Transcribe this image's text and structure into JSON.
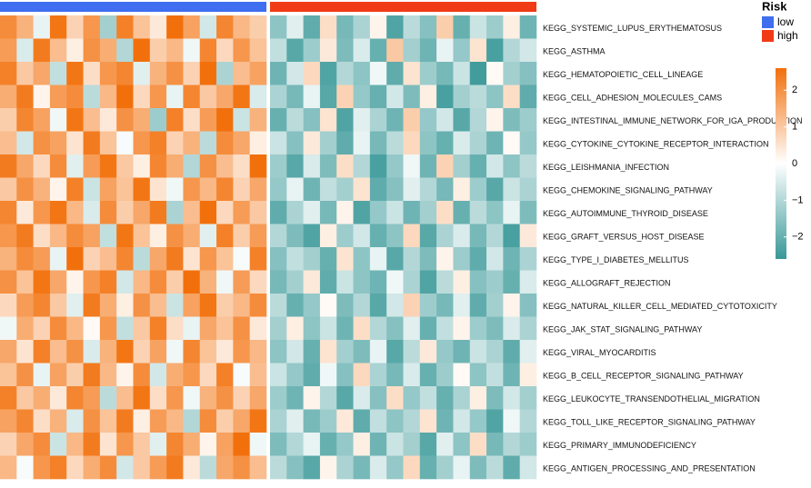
{
  "chart_data": {
    "type": "heatmap",
    "annotation_title": "Risk",
    "column_groups": [
      {
        "name": "low",
        "color": "#3f6ff0",
        "count": 16
      },
      {
        "name": "high",
        "color": "#f03b16",
        "count": 16
      }
    ],
    "colors": {
      "low": "#3a9898",
      "mid": "#ffffff",
      "high": "#f2700c"
    },
    "zlim": [
      -2.6,
      2.6
    ],
    "zticks": [
      {
        "value": -2,
        "label": "−2"
      },
      {
        "value": -1,
        "label": "−1"
      },
      0,
      1,
      2
    ],
    "series": [
      {
        "name": "KEGG_SYSTEMIC_LUPUS_ERYTHEMATOSUS",
        "values": [
          2.1,
          1.4,
          -0.3,
          2.5,
          0.8,
          1.9,
          -1.2,
          2.3,
          1.1,
          0.4,
          2.6,
          1.7,
          -0.6,
          2.2,
          1.3,
          0.9,
          -1.5,
          -0.4,
          -2.1,
          0.6,
          -1.8,
          -1.1,
          0.2,
          -2.3,
          -0.9,
          -1.6,
          0.9,
          -2.0,
          -0.7,
          -1.3,
          0.3,
          -1.9
        ]
      },
      {
        "name": "KEGG_ASTHMA",
        "values": [
          1.8,
          -0.5,
          2.4,
          1.2,
          0.3,
          2.0,
          1.5,
          -1.0,
          2.6,
          0.9,
          1.3,
          -0.2,
          2.2,
          0.7,
          1.9,
          1.1,
          -0.8,
          -2.2,
          -1.3,
          0.4,
          -1.7,
          -0.5,
          -2.0,
          1.0,
          -1.2,
          -1.9,
          -0.3,
          -1.4,
          0.5,
          -2.4,
          -1.0,
          -0.6
        ]
      },
      {
        "name": "KEGG_HEMATOPOIETIC_CELL_LINEAGE",
        "values": [
          2.3,
          1.0,
          1.6,
          -0.8,
          2.5,
          0.6,
          1.9,
          2.2,
          -0.4,
          1.4,
          2.0,
          0.8,
          2.6,
          -1.1,
          1.2,
          1.7,
          -1.9,
          -0.6,
          0.7,
          -2.3,
          -1.0,
          -1.5,
          -0.2,
          -2.1,
          0.5,
          -1.3,
          -1.8,
          -0.7,
          -2.5,
          0.1,
          -1.2,
          -1.6
        ]
      },
      {
        "name": "KEGG_CELL_ADHESION_MOLECULES_CAMS",
        "values": [
          1.5,
          2.4,
          0.2,
          1.8,
          2.1,
          -0.9,
          1.3,
          2.6,
          0.7,
          1.9,
          -0.3,
          2.2,
          1.0,
          1.6,
          2.5,
          -0.5,
          -1.1,
          -1.8,
          -0.3,
          -2.2,
          0.8,
          -1.4,
          -2.0,
          -0.6,
          -1.7,
          0.3,
          -2.4,
          -1.2,
          -0.9,
          -1.5,
          0.6,
          -2.1
        ]
      },
      {
        "name": "KEGG_INTESTINAL_IMMUNE_NETWORK_FOR_IGA_PRODUCTION",
        "values": [
          0.9,
          2.2,
          1.7,
          -0.2,
          2.5,
          1.2,
          0.4,
          2.0,
          1.5,
          -1.3,
          2.3,
          0.6,
          1.8,
          2.6,
          -0.7,
          1.4,
          -2.0,
          -0.9,
          -1.6,
          0.5,
          -2.3,
          -0.4,
          -1.1,
          -1.9,
          0.9,
          -1.4,
          -0.6,
          -2.2,
          -1.0,
          0.2,
          -1.7,
          -1.3
        ]
      },
      {
        "name": "KEGG_CYTOKINE_CYTOKINE_RECEPTOR_INTERACTION",
        "values": [
          1.2,
          -0.6,
          2.0,
          1.7,
          0.5,
          2.4,
          1.1,
          -0.1,
          1.9,
          2.3,
          0.8,
          1.4,
          -0.9,
          2.1,
          1.6,
          0.3,
          -0.7,
          -1.6,
          0.4,
          -1.2,
          -2.1,
          -0.3,
          -1.8,
          -0.9,
          0.7,
          -1.5,
          -2.0,
          -0.5,
          -1.1,
          -1.9,
          0.1,
          -1.4
        ]
      },
      {
        "name": "KEGG_LEISHMANIA_INFECTION",
        "values": [
          2.4,
          1.6,
          0.7,
          2.1,
          -0.4,
          1.8,
          2.5,
          1.0,
          0.3,
          2.2,
          1.5,
          -1.0,
          2.0,
          1.2,
          0.6,
          2.6,
          -1.3,
          -2.2,
          -0.5,
          -1.7,
          0.6,
          -1.0,
          -2.4,
          -1.4,
          -0.2,
          -1.9,
          0.8,
          -1.2,
          -2.0,
          -0.6,
          -1.5,
          -0.9
        ]
      },
      {
        "name": "KEGG_CHEMOKINE_SIGNALING_PATHWAY",
        "values": [
          1.0,
          2.0,
          1.4,
          0.2,
          2.3,
          -0.7,
          1.7,
          1.1,
          2.5,
          0.5,
          -0.2,
          1.9,
          1.3,
          2.2,
          0.8,
          1.6,
          -1.4,
          -0.3,
          -1.9,
          -0.8,
          -1.2,
          0.5,
          -2.1,
          -1.6,
          -0.4,
          -1.0,
          -1.8,
          0.3,
          -1.3,
          -2.2,
          -0.7,
          -1.1
        ]
      },
      {
        "name": "KEGG_AUTOIMMUNE_THYROID_DISEASE",
        "values": [
          2.2,
          0.4,
          1.9,
          2.5,
          1.3,
          -0.5,
          2.1,
          0.9,
          1.6,
          2.4,
          -1.1,
          1.2,
          2.6,
          0.7,
          1.8,
          1.0,
          -2.1,
          -1.1,
          -0.4,
          -1.8,
          0.2,
          -2.3,
          -1.4,
          -0.7,
          -1.9,
          -1.2,
          0.6,
          -2.0,
          -0.9,
          -1.5,
          -0.3,
          -1.7
        ]
      },
      {
        "name": "KEGG_GRAFT_VERSUS_HOST_DISEASE",
        "values": [
          1.9,
          2.4,
          0.6,
          1.3,
          2.1,
          1.7,
          -0.8,
          2.5,
          1.1,
          0.3,
          2.0,
          1.5,
          -0.4,
          2.3,
          0.9,
          1.8,
          -1.0,
          -1.7,
          -2.3,
          0.3,
          -1.3,
          -0.6,
          -2.0,
          -1.5,
          0.7,
          -2.2,
          -1.1,
          -0.5,
          -1.8,
          -1.0,
          -2.4,
          0.4
        ]
      },
      {
        "name": "KEGG_TYPE_I_DIABETES_MELLITUS",
        "values": [
          1.4,
          2.1,
          1.8,
          -0.3,
          2.6,
          0.8,
          1.2,
          2.2,
          -0.9,
          1.6,
          2.4,
          0.5,
          1.9,
          1.1,
          -0.1,
          2.3,
          -1.6,
          -0.8,
          -1.2,
          -2.0,
          0.5,
          -1.5,
          -0.3,
          -2.2,
          -1.0,
          -1.7,
          0.2,
          -1.3,
          -2.1,
          -0.6,
          -1.9,
          -1.1
        ]
      },
      {
        "name": "KEGG_ALLOGRAFT_REJECTION",
        "values": [
          2.0,
          1.1,
          2.5,
          1.6,
          0.2,
          1.9,
          2.3,
          -0.6,
          1.3,
          2.1,
          0.9,
          2.6,
          1.4,
          -0.2,
          1.8,
          0.7,
          -1.8,
          -1.2,
          0.4,
          -2.1,
          -0.7,
          -1.5,
          -1.9,
          -0.2,
          -1.1,
          -2.3,
          -0.9,
          0.3,
          -1.6,
          -1.3,
          -2.0,
          -0.5
        ]
      },
      {
        "name": "KEGG_NATURAL_KILLER_CELL_MEDIATED_CYTOTOXICITY",
        "values": [
          0.7,
          1.8,
          2.2,
          1.0,
          -0.4,
          2.4,
          1.5,
          0.3,
          2.0,
          1.2,
          -0.7,
          1.7,
          2.5,
          0.9,
          1.3,
          2.1,
          -0.9,
          -2.0,
          -1.4,
          0.1,
          -1.7,
          -1.0,
          -2.2,
          -0.6,
          0.8,
          -1.3,
          -1.8,
          -0.4,
          -2.1,
          -1.2,
          0.2,
          -1.6
        ]
      },
      {
        "name": "KEGG_JAK_STAT_SIGNALING_PATHWAY",
        "values": [
          -0.2,
          1.5,
          0.8,
          2.1,
          1.3,
          0.1,
          1.9,
          -0.8,
          1.0,
          2.3,
          0.6,
          -0.3,
          1.6,
          1.1,
          2.0,
          0.4,
          -1.2,
          0.3,
          -1.5,
          -0.7,
          -1.9,
          0.6,
          -1.0,
          -1.6,
          -0.4,
          -2.0,
          -0.8,
          0.2,
          -1.3,
          -1.7,
          -0.5,
          -1.1
        ]
      },
      {
        "name": "KEGG_VIRAL_MYOCARDITIS",
        "values": [
          1.6,
          0.5,
          2.3,
          1.2,
          2.0,
          -0.5,
          1.4,
          2.5,
          0.8,
          1.7,
          -0.2,
          2.2,
          1.1,
          0.4,
          1.9,
          1.3,
          -1.5,
          -0.6,
          -2.0,
          0.5,
          -1.2,
          -1.7,
          -0.3,
          -2.2,
          -0.9,
          0.4,
          -1.4,
          -1.9,
          -0.7,
          -1.1,
          -2.1,
          -0.4
        ]
      },
      {
        "name": "KEGG_B_CELL_RECEPTOR_SIGNALING_PATHWAY",
        "values": [
          1.1,
          2.0,
          -0.3,
          1.7,
          0.9,
          2.4,
          1.3,
          0.2,
          2.1,
          -0.6,
          1.5,
          1.9,
          0.7,
          2.3,
          -0.1,
          1.2,
          -0.7,
          -1.4,
          -2.1,
          -0.2,
          -1.6,
          0.7,
          -1.1,
          -1.8,
          -0.5,
          -2.0,
          -1.3,
          0.1,
          -1.5,
          -0.8,
          -1.9,
          0.3
        ]
      },
      {
        "name": "KEGG_LEUKOCYTE_TRANSENDOTHELIAL_MIGRATION",
        "values": [
          2.3,
          1.0,
          1.5,
          0.4,
          2.2,
          1.8,
          -0.9,
          1.2,
          2.5,
          0.6,
          1.9,
          -0.2,
          1.4,
          2.0,
          0.8,
          1.6,
          -1.3,
          -1.9,
          0.2,
          -1.0,
          -2.2,
          -0.5,
          -1.6,
          0.6,
          -1.4,
          -0.8,
          -2.0,
          -1.1,
          0.3,
          -1.7,
          -0.6,
          -1.2
        ]
      },
      {
        "name": "KEGG_TOLL_LIKE_RECEPTOR_SIGNALING_PATHWAY",
        "values": [
          1.7,
          2.2,
          0.6,
          1.4,
          -0.5,
          2.0,
          1.1,
          2.4,
          0.3,
          1.8,
          1.3,
          -1.0,
          2.1,
          0.9,
          1.6,
          2.5,
          -1.1,
          -0.4,
          -1.8,
          -1.3,
          0.4,
          -2.1,
          -0.8,
          -1.5,
          -1.0,
          0.5,
          -1.9,
          -0.6,
          -1.4,
          -2.3,
          -0.2,
          -1.0
        ]
      },
      {
        "name": "KEGG_PRIMARY_IMMUNODEFICIENCY",
        "values": [
          0.8,
          1.6,
          2.1,
          -0.7,
          1.3,
          2.4,
          0.5,
          1.9,
          1.0,
          -0.4,
          2.2,
          1.5,
          0.2,
          1.7,
          2.6,
          -0.2,
          -1.7,
          -1.0,
          -0.3,
          -2.0,
          -1.4,
          0.3,
          -1.9,
          -0.7,
          -1.2,
          -2.2,
          -0.4,
          -1.5,
          0.6,
          -1.8,
          -1.0,
          -1.3
        ]
      },
      {
        "name": "KEGG_ANTIGEN_PROCESSING_AND_PRESENTATION",
        "values": [
          1.3,
          -0.1,
          1.9,
          2.3,
          0.7,
          1.5,
          2.1,
          -0.6,
          1.0,
          1.8,
          2.4,
          0.4,
          -0.9,
          1.6,
          2.0,
          1.2,
          -0.9,
          -1.6,
          -2.2,
          0.2,
          -1.1,
          -1.8,
          -0.5,
          -1.4,
          0.7,
          -2.0,
          -1.2,
          -0.3,
          -1.7,
          -0.9,
          -2.1,
          -0.6
        ]
      }
    ]
  }
}
